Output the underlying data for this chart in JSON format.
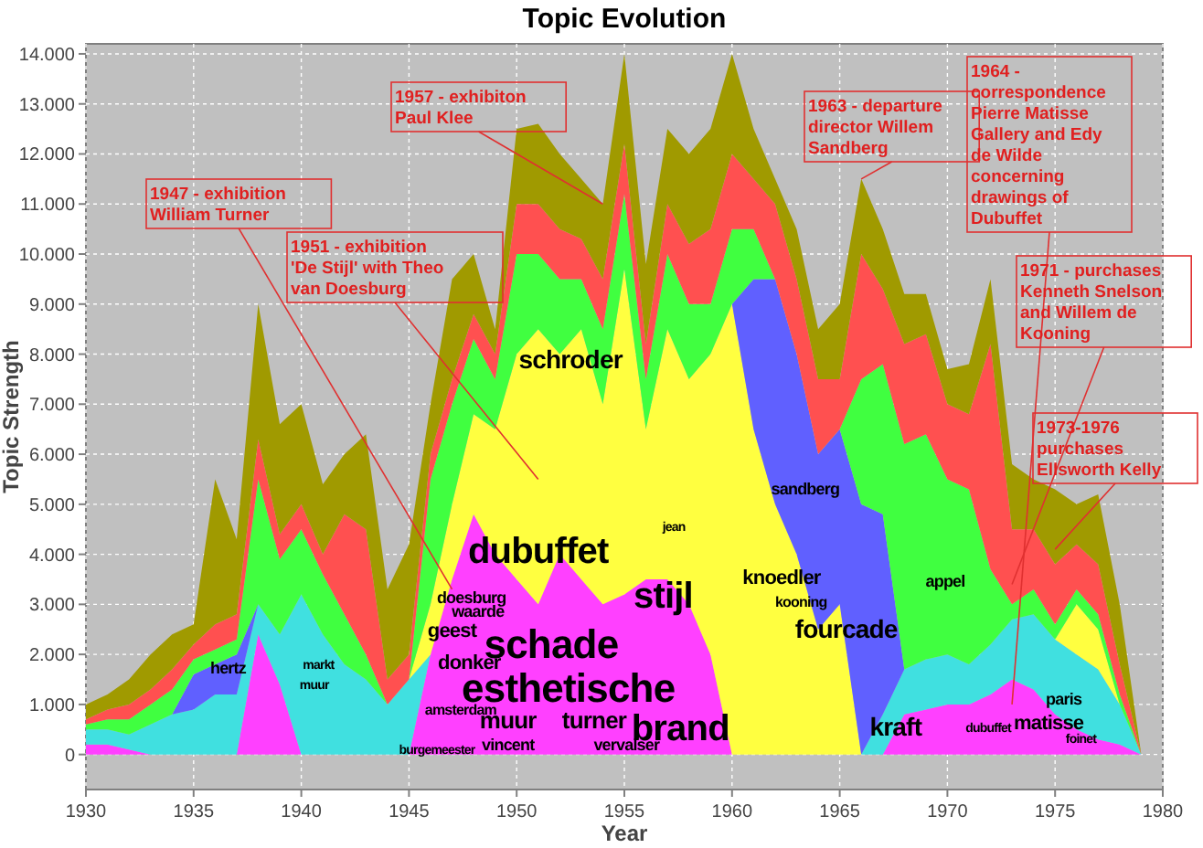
{
  "chart_data": {
    "type": "area",
    "stacked": true,
    "title": "Topic Evolution",
    "xlabel": "Year",
    "ylabel": "Topic Strength",
    "x": [
      1930,
      1931,
      1932,
      1933,
      1934,
      1935,
      1936,
      1937,
      1938,
      1939,
      1940,
      1941,
      1942,
      1943,
      1944,
      1945,
      1946,
      1947,
      1948,
      1949,
      1950,
      1951,
      1952,
      1953,
      1954,
      1955,
      1956,
      1957,
      1958,
      1959,
      1960,
      1961,
      1962,
      1963,
      1964,
      1965,
      1966,
      1967,
      1968,
      1969,
      1970,
      1971,
      1972,
      1973,
      1974,
      1975,
      1976,
      1977,
      1978,
      1979
    ],
    "series": [
      {
        "color": "#ff40ff",
        "values": [
          200,
          200,
          100,
          0,
          null,
          null,
          null,
          0,
          2400,
          1400,
          0,
          null,
          null,
          null,
          null,
          0,
          2000,
          3500,
          4800,
          4000,
          3500,
          3000,
          4000,
          3500,
          3000,
          3200,
          3500,
          3500,
          3000,
          2000,
          0,
          null,
          null,
          null,
          null,
          null,
          null,
          0,
          800,
          900,
          1000,
          1000,
          1200,
          1500,
          1300,
          800,
          500,
          300,
          200,
          0
        ]
      },
      {
        "color": "#40e0e0",
        "values": [
          300,
          300,
          300,
          600,
          800,
          900,
          1200,
          1200,
          600,
          1000,
          3200,
          2400,
          1800,
          1500,
          1000,
          1500,
          0,
          null,
          null,
          null,
          null,
          null,
          null,
          null,
          null,
          null,
          null,
          null,
          null,
          null,
          null,
          null,
          null,
          null,
          null,
          null,
          0,
          800,
          900,
          1000,
          1000,
          800,
          1000,
          1200,
          1500,
          1500,
          1500,
          1400,
          800,
          0
        ]
      },
      {
        "color": "#ffff40",
        "values": [
          null,
          null,
          null,
          null,
          null,
          null,
          null,
          null,
          null,
          null,
          null,
          null,
          null,
          null,
          null,
          0,
          1000,
          1500,
          2000,
          2500,
          4500,
          5500,
          4000,
          5000,
          4000,
          6500,
          3000,
          5000,
          4500,
          6000,
          9000,
          6500,
          5000,
          4000,
          2500,
          3000,
          0,
          null,
          null,
          null,
          null,
          null,
          null,
          null,
          null,
          0,
          1000,
          800,
          0,
          null
        ]
      },
      {
        "color": "#6060ff",
        "values": [
          null,
          null,
          null,
          null,
          0,
          700,
          600,
          800,
          0,
          null,
          null,
          null,
          null,
          null,
          null,
          null,
          null,
          null,
          null,
          null,
          null,
          null,
          null,
          null,
          null,
          null,
          null,
          null,
          null,
          null,
          0,
          3000,
          4500,
          4000,
          3500,
          3500,
          5000,
          4000,
          0,
          null,
          null,
          null,
          null,
          null,
          null,
          null,
          null,
          null,
          null,
          null
        ]
      },
      {
        "color": "#40ff40",
        "values": [
          100,
          200,
          300,
          400,
          500,
          300,
          300,
          300,
          2500,
          1500,
          1300,
          1200,
          1000,
          500,
          0,
          0,
          2500,
          2000,
          1500,
          1000,
          2000,
          1500,
          1500,
          1000,
          1500,
          1500,
          1000,
          1500,
          1500,
          1000,
          1500,
          1000,
          0,
          null,
          null,
          0,
          2500,
          3000,
          4500,
          4500,
          3500,
          3500,
          1500,
          300,
          500,
          300,
          300,
          300,
          200,
          0
        ]
      },
      {
        "color": "#ff5050",
        "values": [
          100,
          200,
          300,
          300,
          400,
          300,
          500,
          500,
          800,
          500,
          500,
          400,
          2000,
          2500,
          500,
          500,
          500,
          500,
          500,
          500,
          1000,
          1000,
          1000,
          800,
          1000,
          1000,
          700,
          1000,
          1200,
          1500,
          1500,
          1000,
          1500,
          1500,
          1500,
          1000,
          2500,
          1500,
          2000,
          2000,
          1500,
          1500,
          4500,
          1500,
          1200,
          1200,
          900,
          1000,
          600,
          0
        ]
      },
      {
        "color": "#a09a00",
        "values": [
          300,
          300,
          500,
          700,
          700,
          400,
          2900,
          1500,
          2700,
          2200,
          2000,
          1400,
          1200,
          1900,
          1800,
          2200,
          1000,
          2000,
          1200,
          500,
          1500,
          1600,
          1500,
          1200,
          1500,
          1800,
          1600,
          1500,
          1800,
          2000,
          2000,
          1000,
          500,
          1000,
          1000,
          1500,
          1500,
          1200,
          1000,
          800,
          700,
          1000,
          1300,
          1300,
          1000,
          1500,
          800,
          1400,
          1200,
          0
        ]
      }
    ],
    "xlim": [
      1930,
      1980
    ],
    "xticks": [
      1930,
      1935,
      1940,
      1945,
      1950,
      1955,
      1960,
      1965,
      1970,
      1975,
      1980
    ],
    "ylim": [
      -700,
      14200
    ],
    "yticks": [
      0,
      {
        "value": 1000,
        "label": "1.000"
      },
      {
        "value": 2000,
        "label": "2.000"
      },
      {
        "value": 3000,
        "label": "3.000"
      },
      {
        "value": 4000,
        "label": "4.000"
      },
      {
        "value": 5000,
        "label": "5.000"
      },
      {
        "value": 6000,
        "label": "6.000"
      },
      {
        "value": 7000,
        "label": "7.000"
      },
      {
        "value": 8000,
        "label": "8.000"
      },
      {
        "value": 9000,
        "label": "9.000"
      },
      {
        "value": 10000,
        "label": "10.000"
      },
      {
        "value": 11000,
        "label": "11.000"
      },
      {
        "value": 12000,
        "label": "12.000"
      },
      {
        "value": 13000,
        "label": "13.000"
      },
      {
        "value": 14000,
        "label": "14.000"
      }
    ],
    "grid": true,
    "annotations": [
      {
        "text": "1947 - exhibition William Turner",
        "x": 1947,
        "y": 3300
      },
      "1951 - exhibition 'De Stijl' with Theo van Doesburg",
      {
        "text": "1957 - exhibiton Paul Klee",
        "x": 1954,
        "y": 11000
      },
      {
        "text": "1963 - departure director Willem Sandberg",
        "x": 1966,
        "y": 11500
      },
      "1964 - correspondence Pierre Matisse Gallery and Edy de Wilde concerning drawings of Dubuffet",
      "1971 - purchases Kenneth Snelson and Willem de Kooning",
      {
        "text": "1973-1976 purchases Ellsworth Kelly",
        "x": 1975,
        "y": 4100
      },
      "dubuffet",
      "schade",
      "esthetische",
      "stijl",
      "brand",
      "muur",
      "turner",
      "vincent",
      "vervalser",
      "geest",
      "donker",
      "waarde",
      "doesburg",
      "amsterdam",
      "burgemeester",
      "schroder",
      "jean",
      "sandberg",
      "knoedler",
      "kooning",
      "fourcade",
      "appel",
      "kraft",
      "dubuffet",
      "matisse",
      "paris",
      "foinet",
      "markt",
      "muur",
      "hertz"
    ]
  }
}
